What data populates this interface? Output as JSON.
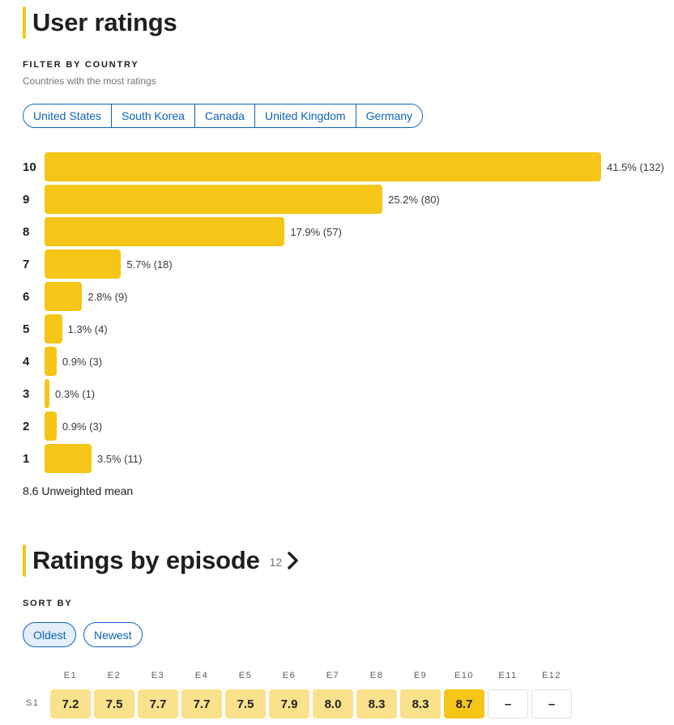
{
  "user_ratings": {
    "title": "User ratings",
    "filter_overline": "FILTER BY COUNTRY",
    "filter_subtitle": "Countries with the most ratings",
    "countries": [
      "United States",
      "South Korea",
      "Canada",
      "United Kingdom",
      "Germany"
    ],
    "accent_color": "#f5c518",
    "link_color": "#0e63be",
    "histogram": [
      {
        "score": "10",
        "percent": 41.5,
        "label": "41.5% (132)"
      },
      {
        "score": "9",
        "percent": 25.2,
        "label": "25.2% (80)"
      },
      {
        "score": "8",
        "percent": 17.9,
        "label": "17.9% (57)"
      },
      {
        "score": "7",
        "percent": 5.7,
        "label": "5.7% (18)"
      },
      {
        "score": "6",
        "percent": 2.8,
        "label": "2.8% (9)"
      },
      {
        "score": "5",
        "percent": 1.3,
        "label": "1.3% (4)"
      },
      {
        "score": "4",
        "percent": 0.9,
        "label": "0.9% (3)"
      },
      {
        "score": "3",
        "percent": 0.3,
        "label": "0.3% (1)"
      },
      {
        "score": "2",
        "percent": 0.9,
        "label": "0.9% (3)"
      },
      {
        "score": "1",
        "percent": 3.5,
        "label": "3.5% (11)"
      }
    ],
    "mean_text": "8.6 Unweighted mean"
  },
  "episodes": {
    "title": "Ratings by episode",
    "count": "12",
    "chevron_icon": "chevron-right-icon",
    "sort_overline": "SORT BY",
    "sort_options": [
      {
        "label": "Oldest",
        "selected": true
      },
      {
        "label": "Newest",
        "selected": false
      }
    ],
    "headers": [
      "E1",
      "E2",
      "E3",
      "E4",
      "E5",
      "E6",
      "E7",
      "E8",
      "E9",
      "E10",
      "E11",
      "E12"
    ],
    "season_label": "S1",
    "ratings": [
      "7.2",
      "7.5",
      "7.7",
      "7.7",
      "7.5",
      "7.9",
      "8.0",
      "8.3",
      "8.3",
      "8.7",
      "–",
      "–"
    ]
  }
}
